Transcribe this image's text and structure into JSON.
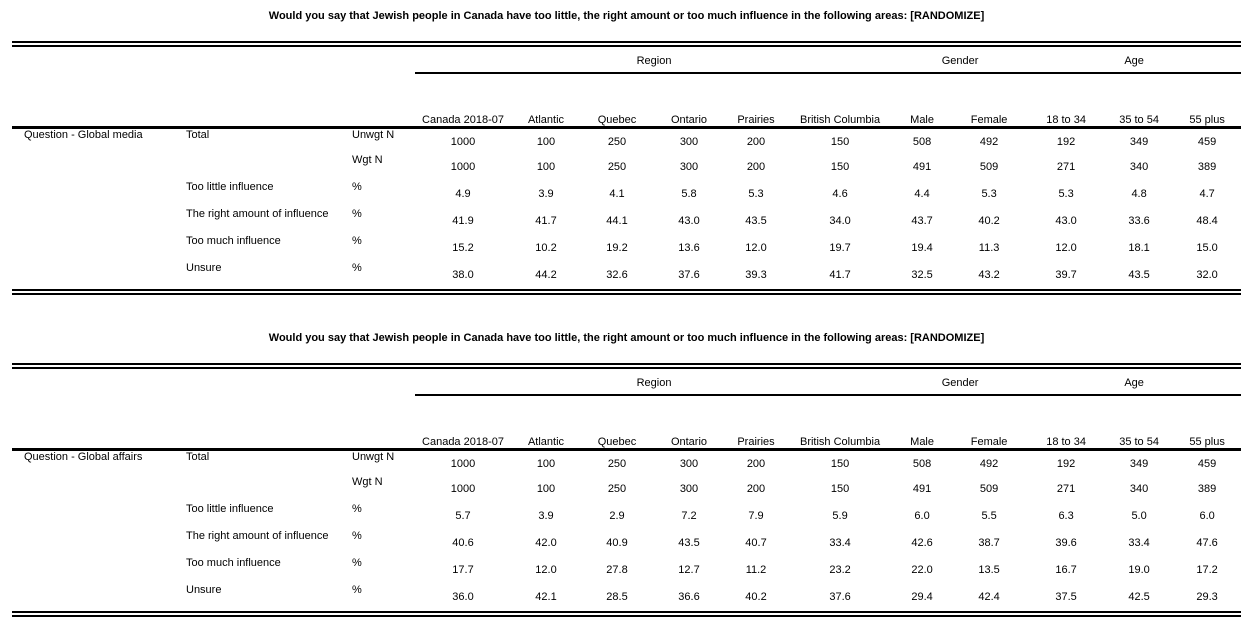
{
  "page": {
    "background_color": "#ffffff",
    "text_color": "#000000",
    "rule_color": "#000000"
  },
  "tables": [
    {
      "title": "Would you say that Jewish people in Canada have too little, the right amount or too much influence in the following areas: [RANDOMIZE]",
      "question_label": "Question - Global media",
      "column_groups": [
        {
          "label": "Region",
          "span": 6
        },
        {
          "label": "Gender",
          "span": 2
        },
        {
          "label": "Age",
          "span": 3
        }
      ],
      "columns": [
        "Canada 2018-07",
        "Atlantic",
        "Quebec",
        "Ontario",
        "Prairies",
        "British Columbia",
        "Male",
        "Female",
        "18 to 34",
        "35 to 54",
        "55 plus"
      ],
      "rows": [
        {
          "response": "Total",
          "stat": "Unwgt N",
          "values": [
            "1000",
            "100",
            "250",
            "300",
            "200",
            "150",
            "508",
            "492",
            "192",
            "349",
            "459"
          ]
        },
        {
          "response": "",
          "stat": "Wgt N",
          "values": [
            "1000",
            "100",
            "250",
            "300",
            "200",
            "150",
            "491",
            "509",
            "271",
            "340",
            "389"
          ]
        },
        {
          "response": "Too little influence",
          "stat": "%",
          "values": [
            "4.9",
            "3.9",
            "4.1",
            "5.8",
            "5.3",
            "4.6",
            "4.4",
            "5.3",
            "5.3",
            "4.8",
            "4.7"
          ]
        },
        {
          "response": "The right amount of influence",
          "stat": "%",
          "values": [
            "41.9",
            "41.7",
            "44.1",
            "43.0",
            "43.5",
            "34.0",
            "43.7",
            "40.2",
            "43.0",
            "33.6",
            "48.4"
          ]
        },
        {
          "response": "Too much influence",
          "stat": "%",
          "values": [
            "15.2",
            "10.2",
            "19.2",
            "13.6",
            "12.0",
            "19.7",
            "19.4",
            "11.3",
            "12.0",
            "18.1",
            "15.0"
          ]
        },
        {
          "response": "Unsure",
          "stat": "%",
          "values": [
            "38.0",
            "44.2",
            "32.6",
            "37.6",
            "39.3",
            "41.7",
            "32.5",
            "43.2",
            "39.7",
            "43.5",
            "32.0"
          ]
        }
      ]
    },
    {
      "title": "Would you say that Jewish people in Canada have too little, the right amount or too much influence in the following areas: [RANDOMIZE]",
      "question_label": "Question - Global affairs",
      "column_groups": [
        {
          "label": "Region",
          "span": 6
        },
        {
          "label": "Gender",
          "span": 2
        },
        {
          "label": "Age",
          "span": 3
        }
      ],
      "columns": [
        "Canada 2018-07",
        "Atlantic",
        "Quebec",
        "Ontario",
        "Prairies",
        "British Columbia",
        "Male",
        "Female",
        "18 to 34",
        "35 to 54",
        "55 plus"
      ],
      "rows": [
        {
          "response": "Total",
          "stat": "Unwgt N",
          "values": [
            "1000",
            "100",
            "250",
            "300",
            "200",
            "150",
            "508",
            "492",
            "192",
            "349",
            "459"
          ]
        },
        {
          "response": "",
          "stat": "Wgt N",
          "values": [
            "1000",
            "100",
            "250",
            "300",
            "200",
            "150",
            "491",
            "509",
            "271",
            "340",
            "389"
          ]
        },
        {
          "response": "Too little influence",
          "stat": "%",
          "values": [
            "5.7",
            "3.9",
            "2.9",
            "7.2",
            "7.9",
            "5.9",
            "6.0",
            "5.5",
            "6.3",
            "5.0",
            "6.0"
          ]
        },
        {
          "response": "The right amount of influence",
          "stat": "%",
          "values": [
            "40.6",
            "42.0",
            "40.9",
            "43.5",
            "40.7",
            "33.4",
            "42.6",
            "38.7",
            "39.6",
            "33.4",
            "47.6"
          ]
        },
        {
          "response": "Too much influence",
          "stat": "%",
          "values": [
            "17.7",
            "12.0",
            "27.8",
            "12.7",
            "11.2",
            "23.2",
            "22.0",
            "13.5",
            "16.7",
            "19.0",
            "17.2"
          ]
        },
        {
          "response": "Unsure",
          "stat": "%",
          "values": [
            "36.0",
            "42.1",
            "28.5",
            "36.6",
            "40.2",
            "37.6",
            "29.4",
            "42.4",
            "37.5",
            "42.5",
            "29.3"
          ]
        }
      ]
    }
  ]
}
